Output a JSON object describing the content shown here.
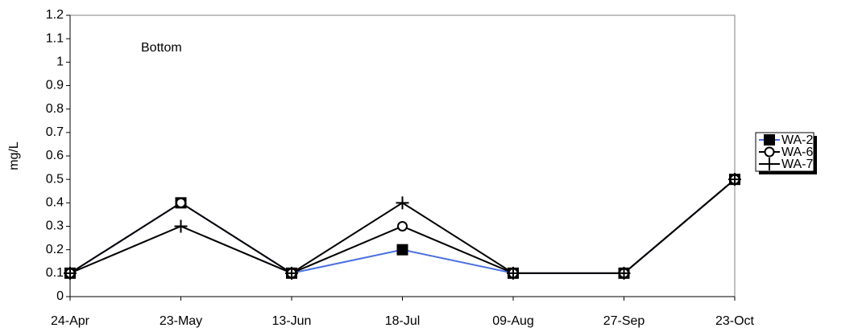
{
  "chart_data": {
    "type": "line",
    "y_label": "mg/L",
    "annotation": "Bottom",
    "categories": [
      "24-Apr",
      "23-May",
      "13-Jun",
      "18-Jul",
      "09-Aug",
      "27-Sep",
      "23-Oct"
    ],
    "series": [
      {
        "name": "WA-2",
        "color": "#4a6fe3",
        "marker": "square",
        "marker_color": "#000000",
        "values": [
          0.1,
          0.4,
          0.1,
          0.2,
          0.1,
          0.1,
          0.5
        ]
      },
      {
        "name": "WA-6",
        "color": "#000000",
        "marker": "circle",
        "marker_color": "#000000",
        "values": [
          0.1,
          0.4,
          0.1,
          0.3,
          0.1,
          0.1,
          0.5
        ]
      },
      {
        "name": "WA-7",
        "color": "#000000",
        "marker": "plus",
        "marker_color": "#000000",
        "values": [
          0.1,
          0.3,
          0.1,
          0.4,
          0.1,
          0.1,
          0.5
        ]
      }
    ],
    "ylim": [
      0,
      1.2
    ],
    "yticks": [
      0,
      0.1,
      0.2,
      0.3,
      0.4,
      0.5,
      0.6,
      0.7,
      0.8,
      0.9,
      1,
      1.1,
      1.2
    ],
    "grid": false,
    "legend": "right"
  }
}
